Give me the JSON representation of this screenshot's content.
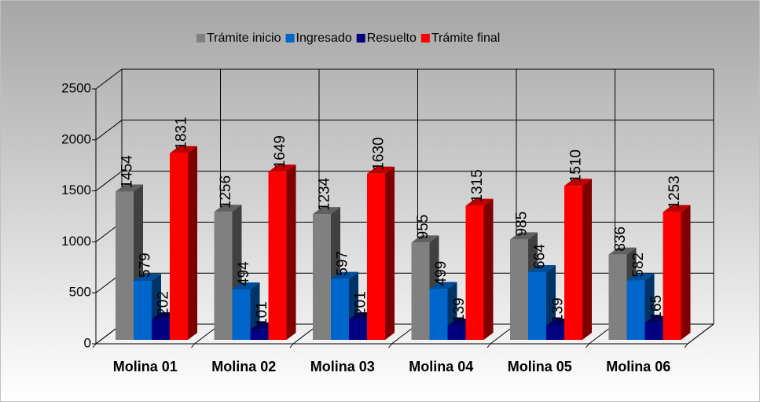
{
  "chart_data": {
    "type": "bar3d",
    "categories": [
      "Molina 01",
      "Molina 02",
      "Molina 03",
      "Molina 04",
      "Molina 05",
      "Molina 06"
    ],
    "series": [
      {
        "name": "Trámite inicio",
        "color": "#808080",
        "values": [
          1454,
          1256,
          1234,
          955,
          985,
          836
        ]
      },
      {
        "name": "Ingresado",
        "color": "#0066cc",
        "values": [
          579,
          494,
          597,
          499,
          664,
          582
        ]
      },
      {
        "name": "Resuelto",
        "color": "#000080",
        "values": [
          202,
          101,
          201,
          139,
          139,
          165
        ]
      },
      {
        "name": "Trámite final",
        "color": "#ff0000",
        "values": [
          1831,
          1649,
          1630,
          1315,
          1510,
          1253
        ]
      }
    ],
    "ylim": [
      0,
      2500
    ],
    "yticks": [
      0,
      500,
      1000,
      1500,
      2000,
      2500
    ],
    "grid": true,
    "legend": "top"
  }
}
